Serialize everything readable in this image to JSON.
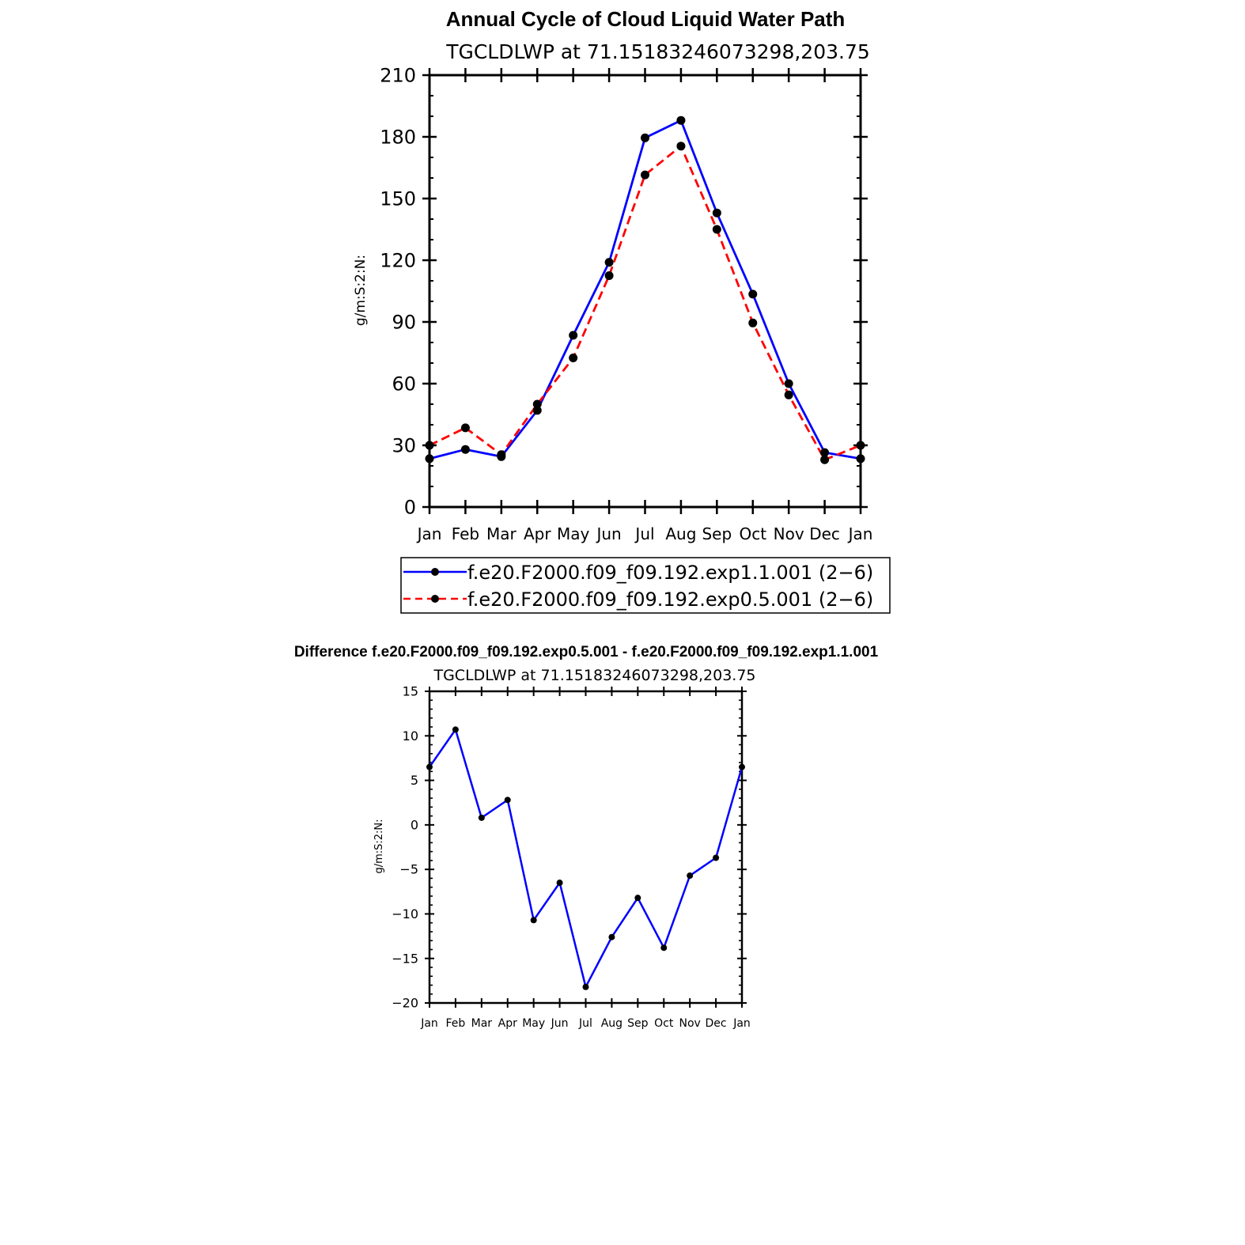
{
  "chart_data": [
    {
      "type": "line",
      "title": "Annual Cycle of Cloud Liquid Water Path",
      "subtitle": "TGCLDLWP at 71.15183246073298,203.75",
      "ylabel": "g/m:S:2:N:",
      "xlabel": "",
      "categories": [
        "Jan",
        "Feb",
        "Mar",
        "Apr",
        "May",
        "Jun",
        "Jul",
        "Aug",
        "Sep",
        "Oct",
        "Nov",
        "Dec",
        "Jan"
      ],
      "ylim": [
        0,
        210
      ],
      "yticks": [
        "0",
        "30",
        "60",
        "90",
        "120",
        "150",
        "180",
        "210"
      ],
      "grid": false,
      "legend_position": "bottom",
      "series": [
        {
          "name": "f.e20.F2000.f09_f09.192.exp1.1.001 (2−6)",
          "color": "#0000ff",
          "dash": "solid",
          "values": [
            23.5,
            28,
            24.5,
            47,
            83.5,
            119,
            179.5,
            188,
            143,
            103.5,
            60,
            26.5,
            23.5
          ]
        },
        {
          "name": "f.e20.F2000.f09_f09.192.exp0.5.001 (2−6)",
          "color": "#ff0000",
          "dash": "dashed",
          "values": [
            30,
            38.5,
            25.5,
            50,
            72.5,
            112.5,
            161.5,
            175.5,
            135,
            89.5,
            54.5,
            23,
            30
          ]
        }
      ]
    },
    {
      "type": "line",
      "title": "Difference f.e20.F2000.f09_f09.192.exp0.5.001 - f.e20.F2000.f09_f09.192.exp1.1.001",
      "subtitle": "TGCLDLWP at 71.15183246073298,203.75",
      "ylabel": "g/m:S:2:N:",
      "xlabel": "",
      "categories": [
        "Jan",
        "Feb",
        "Mar",
        "Apr",
        "May",
        "Jun",
        "Jul",
        "Aug",
        "Sep",
        "Oct",
        "Nov",
        "Dec",
        "Jan"
      ],
      "ylim": [
        -20,
        15
      ],
      "yticks": [
        "−20",
        "−15",
        "−10",
        "−5",
        "0",
        "5",
        "10",
        "15"
      ],
      "grid": false,
      "series": [
        {
          "color": "#0000ff",
          "values": [
            6.5,
            10.7,
            0.8,
            2.8,
            -10.7,
            -6.5,
            -18.2,
            -12.6,
            -8.2,
            -13.8,
            -5.7,
            -3.7,
            6.5
          ]
        }
      ]
    }
  ]
}
